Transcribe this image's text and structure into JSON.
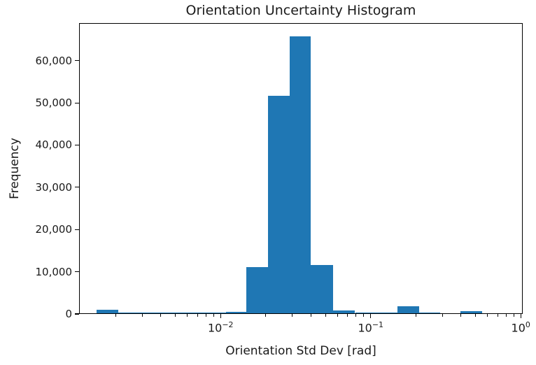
{
  "chart_data": {
    "type": "bar",
    "subtype": "histogram-log-x",
    "title": "Orientation Uncertainty Histogram",
    "xlabel": "Orientation Std Dev [rad]",
    "ylabel": "Frequency",
    "x_scale": "log",
    "xlim": [
      0.00114,
      1.03
    ],
    "ylim": [
      0,
      68900
    ],
    "grid": false,
    "legend": false,
    "bar_color": "#1f77b4",
    "spine_color": "#000000",
    "y_ticks": [
      {
        "value": 0,
        "label": "0"
      },
      {
        "value": 10000,
        "label": "10,000"
      },
      {
        "value": 20000,
        "label": "20,000"
      },
      {
        "value": 30000,
        "label": "30,000"
      },
      {
        "value": 40000,
        "label": "40,000"
      },
      {
        "value": 50000,
        "label": "50,000"
      },
      {
        "value": 60000,
        "label": "60,000"
      }
    ],
    "x_major_ticks": [
      {
        "value": 0.01,
        "base": "10",
        "exponent": -2
      },
      {
        "value": 0.1,
        "base": "10",
        "exponent": -1
      },
      {
        "value": 1,
        "base": "10",
        "exponent": 0
      }
    ],
    "x_minor_tick_decades": [
      -3,
      -2,
      -1
    ],
    "bins": [
      {
        "x_min": 0.00147,
        "x_max": 0.00205,
        "count": 800
      },
      {
        "x_min": 0.00205,
        "x_max": 0.00286,
        "count": 250
      },
      {
        "x_min": 0.00286,
        "x_max": 0.004,
        "count": 250
      },
      {
        "x_min": 0.004,
        "x_max": 0.00559,
        "count": 250
      },
      {
        "x_min": 0.00559,
        "x_max": 0.00781,
        "count": 250
      },
      {
        "x_min": 0.00781,
        "x_max": 0.01077,
        "count": 250
      },
      {
        "x_min": 0.01077,
        "x_max": 0.01462,
        "count": 300
      },
      {
        "x_min": 0.01462,
        "x_max": 0.02039,
        "count": 11000
      },
      {
        "x_min": 0.02039,
        "x_max": 0.02866,
        "count": 51500
      },
      {
        "x_min": 0.02866,
        "x_max": 0.03956,
        "count": 65600
      },
      {
        "x_min": 0.03956,
        "x_max": 0.05576,
        "count": 11400
      },
      {
        "x_min": 0.05576,
        "x_max": 0.0779,
        "count": 700
      },
      {
        "x_min": 0.0779,
        "x_max": 0.1086,
        "count": 250
      },
      {
        "x_min": 0.1086,
        "x_max": 0.1494,
        "count": 250
      },
      {
        "x_min": 0.1494,
        "x_max": 0.2087,
        "count": 1600
      },
      {
        "x_min": 0.2087,
        "x_max": 0.2878,
        "count": 250
      },
      {
        "x_min": 0.393,
        "x_max": 0.549,
        "count": 500
      }
    ]
  }
}
